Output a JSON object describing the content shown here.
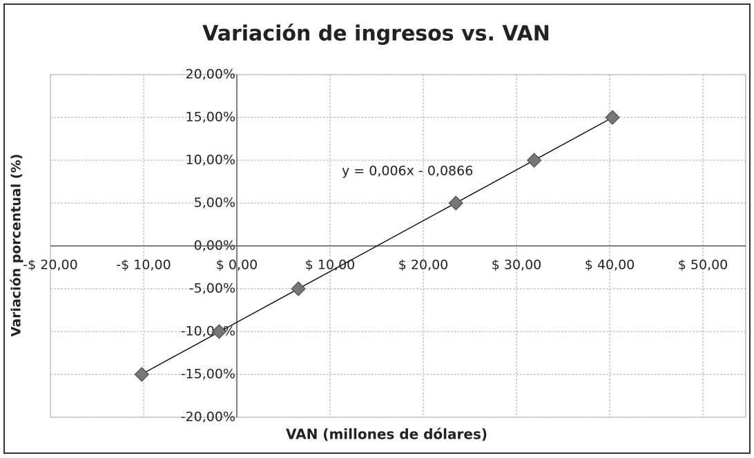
{
  "chart_data": {
    "type": "scatter",
    "title": "Variación de ingresos  vs. VAN",
    "x_label": "VAN (millones de dólares)",
    "y_label": "Variación porcentual (%)",
    "annotation": "y = 0,006x - 0,0866",
    "series": [
      {
        "name": "Variación",
        "color": "#777777",
        "x": [
          -10.2,
          -1.9,
          6.6,
          23.5,
          31.9,
          40.3
        ],
        "values": [
          -15,
          -10,
          -5,
          5,
          10,
          15
        ]
      }
    ],
    "trendline": true,
    "xlim": [
      -20,
      50
    ],
    "xticks": [
      {
        "value": -20,
        "label": "-$ 20,00"
      },
      {
        "value": -10,
        "label": "-$ 10,00"
      },
      {
        "value": 0,
        "label": "$ 0,00"
      },
      {
        "value": 10,
        "label": "$ 10,00"
      },
      {
        "value": 20,
        "label": "$ 20,00"
      },
      {
        "value": 30,
        "label": "$ 30,00"
      },
      {
        "value": 40,
        "label": "$ 40,00"
      },
      {
        "value": 50,
        "label": "$ 50,00"
      }
    ],
    "ylim": [
      -20,
      20
    ],
    "yticks": [
      {
        "value": -20,
        "label": "-20,00%"
      },
      {
        "value": -15,
        "label": "-15,00%"
      },
      {
        "value": -10,
        "label": "-10,00%"
      },
      {
        "value": -5,
        "label": "-5,00%"
      },
      {
        "value": 0,
        "label": "0,00%"
      },
      {
        "value": 5,
        "label": "5,00%"
      },
      {
        "value": 10,
        "label": "10,00%"
      },
      {
        "value": 15,
        "label": "15,00%"
      },
      {
        "value": 20,
        "label": "20,00%"
      }
    ],
    "grid": true
  }
}
